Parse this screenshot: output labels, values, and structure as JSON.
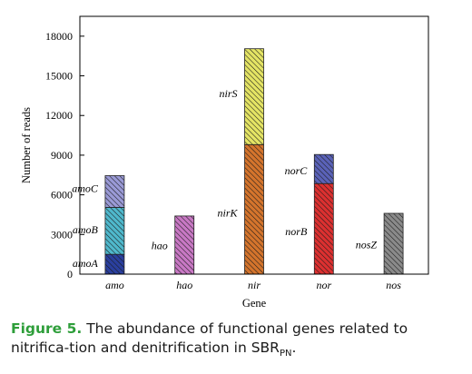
{
  "chart_data": {
    "type": "bar",
    "stacked": true,
    "categories": [
      "amo",
      "hao",
      "nir",
      "nor",
      "nos"
    ],
    "xlabel": "Gene",
    "ylabel": "Number of reads",
    "ylim": [
      0,
      19500
    ],
    "yticks": [
      0,
      3000,
      6000,
      9000,
      12000,
      15000,
      18000
    ],
    "grid": false,
    "bars": [
      {
        "category": "amo",
        "segments": [
          {
            "gene": "amoA",
            "value": 1500,
            "color": "#2a3f9e"
          },
          {
            "gene": "amoB",
            "value": 3550,
            "color": "#4fb8cc"
          },
          {
            "gene": "amoC",
            "value": 2400,
            "color": "#9a9ad6"
          }
        ]
      },
      {
        "category": "hao",
        "segments": [
          {
            "gene": "hao",
            "value": 4400,
            "color": "#c878c4"
          }
        ]
      },
      {
        "category": "nir",
        "segments": [
          {
            "gene": "nirK",
            "value": 9800,
            "color": "#d4742c"
          },
          {
            "gene": "nirS",
            "value": 7250,
            "color": "#e4e464"
          }
        ]
      },
      {
        "category": "nor",
        "segments": [
          {
            "gene": "norB",
            "value": 6850,
            "color": "#dc3030"
          },
          {
            "gene": "norC",
            "value": 2200,
            "color": "#5a62b8"
          }
        ]
      },
      {
        "category": "nos",
        "segments": [
          {
            "gene": "nosZ",
            "value": 4600,
            "color": "#8a8a8a"
          }
        ]
      }
    ],
    "annotations": [
      {
        "text": "amoA",
        "category": "amo",
        "side": "left",
        "y": 550
      },
      {
        "text": "amoB",
        "category": "amo",
        "side": "left",
        "y": 3100
      },
      {
        "text": "amoC",
        "category": "amo",
        "side": "left",
        "y": 6200
      },
      {
        "text": "hao",
        "category": "hao",
        "side": "left",
        "y": 1900
      },
      {
        "text": "nirK",
        "category": "nir",
        "side": "left",
        "y": 4350
      },
      {
        "text": "nirS",
        "category": "nir",
        "side": "left",
        "y": 13400
      },
      {
        "text": "norB",
        "category": "nor",
        "side": "left",
        "y": 2950
      },
      {
        "text": "norC",
        "category": "nor",
        "side": "left",
        "y": 7550
      },
      {
        "text": "nosZ",
        "category": "nos",
        "side": "left",
        "y": 1950
      }
    ]
  },
  "caption": {
    "label": "Figure 5.",
    "text_before": "The abundance of functional genes related to nitrifica-tion and denitrification in SBR",
    "subscript": "PN",
    "text_after": "."
  }
}
